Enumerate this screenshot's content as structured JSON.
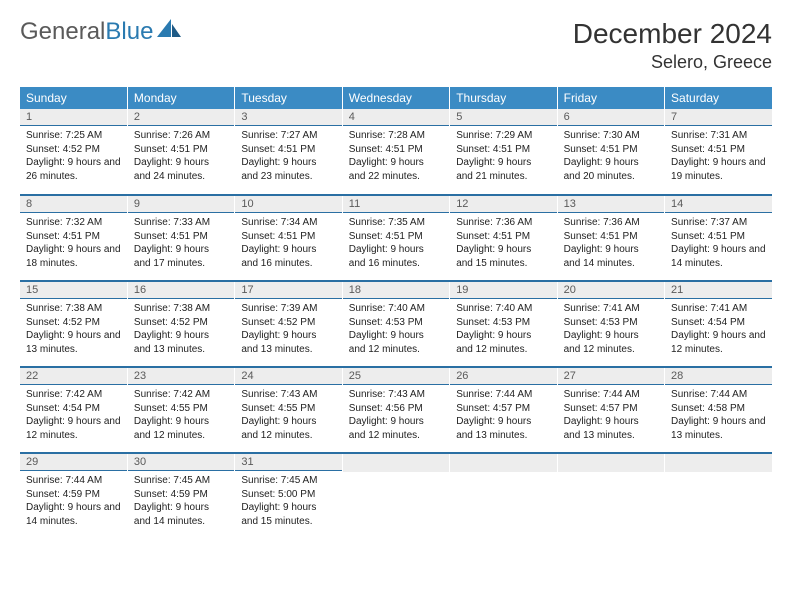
{
  "brand": {
    "part1": "General",
    "part2": "Blue"
  },
  "title": "December 2024",
  "location": "Selero, Greece",
  "colors": {
    "header_bg": "#3b8bc4",
    "header_text": "#ffffff",
    "daynum_bg": "#ededed",
    "daynum_text": "#5a5a5a",
    "rule": "#2a6fa3",
    "brand_gray": "#5a5a5a",
    "brand_blue": "#2a7ab0"
  },
  "weekdays": [
    "Sunday",
    "Monday",
    "Tuesday",
    "Wednesday",
    "Thursday",
    "Friday",
    "Saturday"
  ],
  "weeks": [
    [
      {
        "n": "1",
        "sr": "7:25 AM",
        "ss": "4:52 PM",
        "dl": "9 hours and 26 minutes."
      },
      {
        "n": "2",
        "sr": "7:26 AM",
        "ss": "4:51 PM",
        "dl": "9 hours and 24 minutes."
      },
      {
        "n": "3",
        "sr": "7:27 AM",
        "ss": "4:51 PM",
        "dl": "9 hours and 23 minutes."
      },
      {
        "n": "4",
        "sr": "7:28 AM",
        "ss": "4:51 PM",
        "dl": "9 hours and 22 minutes."
      },
      {
        "n": "5",
        "sr": "7:29 AM",
        "ss": "4:51 PM",
        "dl": "9 hours and 21 minutes."
      },
      {
        "n": "6",
        "sr": "7:30 AM",
        "ss": "4:51 PM",
        "dl": "9 hours and 20 minutes."
      },
      {
        "n": "7",
        "sr": "7:31 AM",
        "ss": "4:51 PM",
        "dl": "9 hours and 19 minutes."
      }
    ],
    [
      {
        "n": "8",
        "sr": "7:32 AM",
        "ss": "4:51 PM",
        "dl": "9 hours and 18 minutes."
      },
      {
        "n": "9",
        "sr": "7:33 AM",
        "ss": "4:51 PM",
        "dl": "9 hours and 17 minutes."
      },
      {
        "n": "10",
        "sr": "7:34 AM",
        "ss": "4:51 PM",
        "dl": "9 hours and 16 minutes."
      },
      {
        "n": "11",
        "sr": "7:35 AM",
        "ss": "4:51 PM",
        "dl": "9 hours and 16 minutes."
      },
      {
        "n": "12",
        "sr": "7:36 AM",
        "ss": "4:51 PM",
        "dl": "9 hours and 15 minutes."
      },
      {
        "n": "13",
        "sr": "7:36 AM",
        "ss": "4:51 PM",
        "dl": "9 hours and 14 minutes."
      },
      {
        "n": "14",
        "sr": "7:37 AM",
        "ss": "4:51 PM",
        "dl": "9 hours and 14 minutes."
      }
    ],
    [
      {
        "n": "15",
        "sr": "7:38 AM",
        "ss": "4:52 PM",
        "dl": "9 hours and 13 minutes."
      },
      {
        "n": "16",
        "sr": "7:38 AM",
        "ss": "4:52 PM",
        "dl": "9 hours and 13 minutes."
      },
      {
        "n": "17",
        "sr": "7:39 AM",
        "ss": "4:52 PM",
        "dl": "9 hours and 13 minutes."
      },
      {
        "n": "18",
        "sr": "7:40 AM",
        "ss": "4:53 PM",
        "dl": "9 hours and 12 minutes."
      },
      {
        "n": "19",
        "sr": "7:40 AM",
        "ss": "4:53 PM",
        "dl": "9 hours and 12 minutes."
      },
      {
        "n": "20",
        "sr": "7:41 AM",
        "ss": "4:53 PM",
        "dl": "9 hours and 12 minutes."
      },
      {
        "n": "21",
        "sr": "7:41 AM",
        "ss": "4:54 PM",
        "dl": "9 hours and 12 minutes."
      }
    ],
    [
      {
        "n": "22",
        "sr": "7:42 AM",
        "ss": "4:54 PM",
        "dl": "9 hours and 12 minutes."
      },
      {
        "n": "23",
        "sr": "7:42 AM",
        "ss": "4:55 PM",
        "dl": "9 hours and 12 minutes."
      },
      {
        "n": "24",
        "sr": "7:43 AM",
        "ss": "4:55 PM",
        "dl": "9 hours and 12 minutes."
      },
      {
        "n": "25",
        "sr": "7:43 AM",
        "ss": "4:56 PM",
        "dl": "9 hours and 12 minutes."
      },
      {
        "n": "26",
        "sr": "7:44 AM",
        "ss": "4:57 PM",
        "dl": "9 hours and 13 minutes."
      },
      {
        "n": "27",
        "sr": "7:44 AM",
        "ss": "4:57 PM",
        "dl": "9 hours and 13 minutes."
      },
      {
        "n": "28",
        "sr": "7:44 AM",
        "ss": "4:58 PM",
        "dl": "9 hours and 13 minutes."
      }
    ],
    [
      {
        "n": "29",
        "sr": "7:44 AM",
        "ss": "4:59 PM",
        "dl": "9 hours and 14 minutes."
      },
      {
        "n": "30",
        "sr": "7:45 AM",
        "ss": "4:59 PM",
        "dl": "9 hours and 14 minutes."
      },
      {
        "n": "31",
        "sr": "7:45 AM",
        "ss": "5:00 PM",
        "dl": "9 hours and 15 minutes."
      },
      null,
      null,
      null,
      null
    ]
  ],
  "labels": {
    "sunrise": "Sunrise:",
    "sunset": "Sunset:",
    "daylight": "Daylight:"
  }
}
